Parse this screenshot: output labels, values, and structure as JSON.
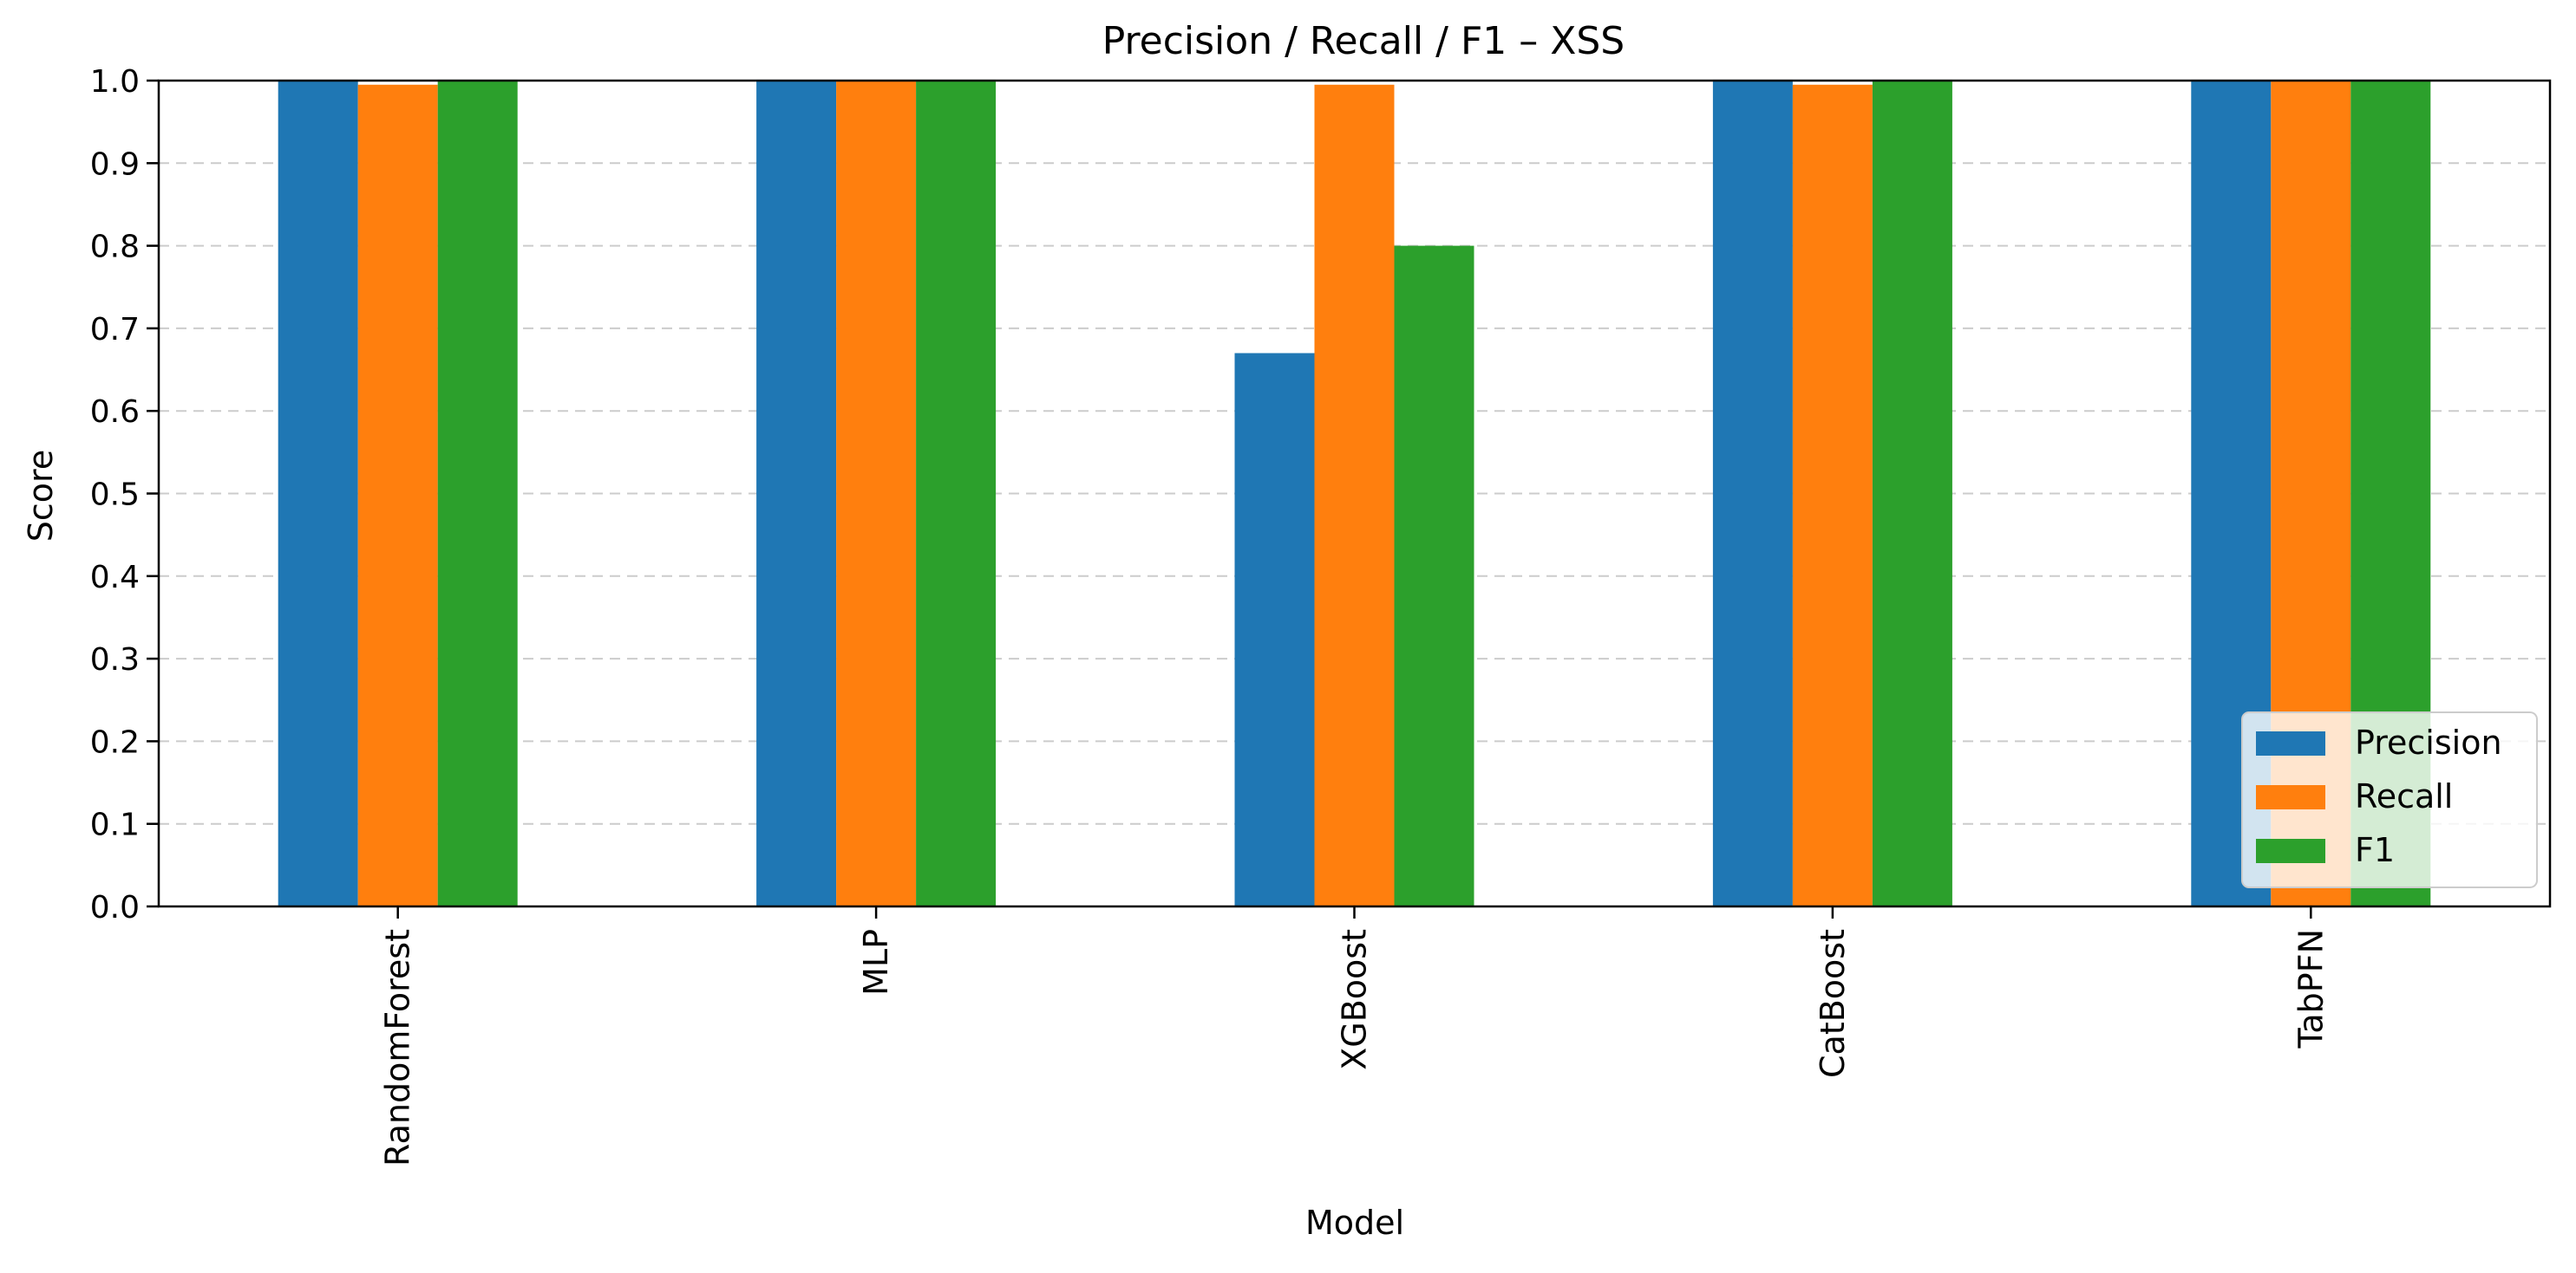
{
  "chart_data": {
    "type": "bar",
    "title": "Precision / Recall / F1 – XSS",
    "xlabel": "Model",
    "ylabel": "Score",
    "ylim": [
      0,
      1.0
    ],
    "yticks": [
      "0.0",
      "0.1",
      "0.2",
      "0.3",
      "0.4",
      "0.5",
      "0.6",
      "0.7",
      "0.8",
      "0.9",
      "1.0"
    ],
    "grid": "y-dashed",
    "legend_position": "lower-right",
    "categories": [
      "RandomForest",
      "MLP",
      "XGBoost",
      "CatBoost",
      "TabPFN"
    ],
    "series": [
      {
        "name": "Precision",
        "color": "#1f77b4",
        "values": [
          1.0,
          1.0,
          0.67,
          1.0,
          1.0
        ]
      },
      {
        "name": "Recall",
        "color": "#ff7f0e",
        "values": [
          0.995,
          1.0,
          0.995,
          0.995,
          1.0
        ]
      },
      {
        "name": "F1",
        "color": "#2ca02c",
        "values": [
          1.0,
          1.0,
          0.8,
          1.0,
          1.0
        ]
      }
    ]
  }
}
